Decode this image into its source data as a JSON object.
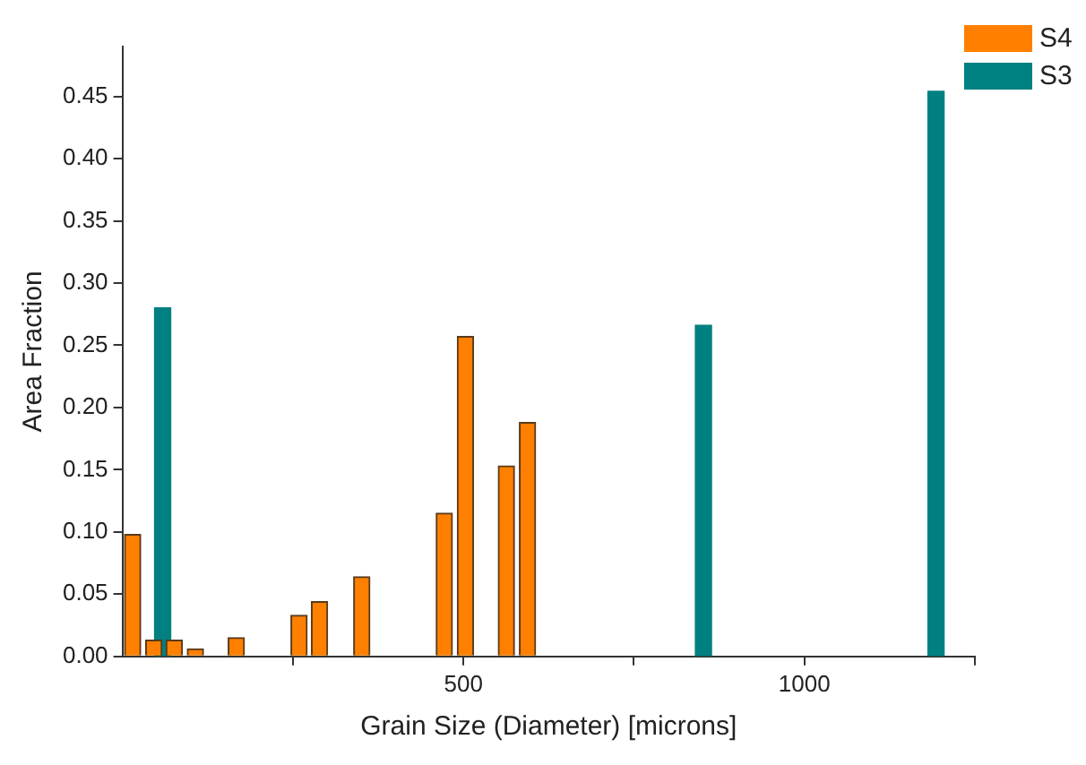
{
  "chart_data": {
    "type": "bar",
    "xlabel": "Grain Size (Diameter) [microns]",
    "ylabel": "Area Fraction",
    "xlim": [
      0,
      1250
    ],
    "xticks": [
      {
        "value": 250,
        "label": null
      },
      500,
      {
        "value": 750,
        "label": null
      },
      1000,
      {
        "value": 1250,
        "label": null
      }
    ],
    "ylim": [
      0,
      0.49
    ],
    "yticks": [
      {
        "value": 0,
        "label": "0.00"
      },
      0.05,
      {
        "value": 0.1,
        "label": "0.10"
      },
      0.15,
      {
        "value": 0.2,
        "label": "0.20"
      },
      0.25,
      {
        "value": 0.3,
        "label": "0.30"
      },
      0.35,
      {
        "value": 0.4,
        "label": "0.40"
      },
      0.45
    ],
    "grid": false,
    "legend": "top right",
    "series": [
      {
        "name": "S4",
        "color": "#ff8000",
        "x": [
          15,
          46,
          76,
          107,
          167,
          259,
          289,
          351,
          472,
          503,
          563,
          594
        ],
        "values": [
          0.098,
          0.013,
          0.013,
          0.006,
          0.015,
          0.033,
          0.044,
          0.064,
          0.115,
          0.257,
          0.153,
          0.188
        ]
      },
      {
        "name": "S3",
        "color": "#008080",
        "x": [
          59,
          852,
          1193
        ],
        "values": [
          0.28,
          0.266,
          0.454
        ]
      }
    ]
  }
}
